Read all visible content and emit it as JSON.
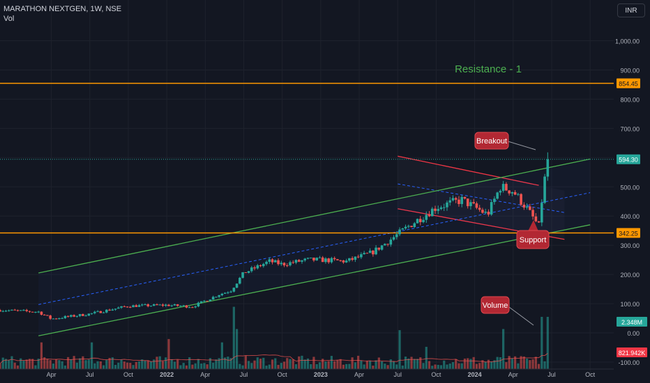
{
  "header": {
    "symbol": "MARATHON NEXTGEN, 1W, NSE",
    "volume_label": "Vol",
    "currency": "INR"
  },
  "colors": {
    "background": "#131722",
    "bull": "#26a69a",
    "bear": "#ef5350",
    "channel_green": "#4caf50",
    "channel_red": "#f23645",
    "level_orange": "#ff9800",
    "median_blue": "#2962ff",
    "callout": "#b22833"
  },
  "annotations": {
    "resistance": "Resistance - 1",
    "breakout": "Breakout",
    "support": "Support",
    "volume": "Volume"
  },
  "chart_data": {
    "type": "candlestick",
    "symbol": "MARATHON NEXTGEN",
    "interval": "1W",
    "exchange": "NSE",
    "y_axis": {
      "ticks": [
        1000,
        900,
        800,
        700,
        600,
        500,
        400,
        300,
        200,
        100,
        0,
        -100
      ],
      "tick_labels": [
        "1,000.00",
        "900.00",
        "800.00",
        "700.00",
        "600.00",
        "500.00",
        "400.00",
        "300.00",
        "200.00",
        "100.00",
        "0.00",
        "-100.00"
      ],
      "ylim": [
        -143,
        1068
      ]
    },
    "x_axis": {
      "ticks": [
        "2021-04",
        "2021-07",
        "2021-10",
        "2022-01",
        "2022-04",
        "2022-07",
        "2022-10",
        "2023-01",
        "2023-04",
        "2023-07",
        "2023-10",
        "2024-01",
        "2024-04",
        "2024-07",
        "2024-10"
      ],
      "tick_labels": [
        "Apr",
        "Jul",
        "Oct",
        "2022",
        "Apr",
        "Jul",
        "Oct",
        "2023",
        "Apr",
        "Jul",
        "Oct",
        "2024",
        "Apr",
        "Jul",
        "Oct"
      ]
    },
    "price_labels": [
      {
        "label": "854.45",
        "value": 854.45
      },
      {
        "label": "594.30",
        "value": 594.3
      },
      {
        "label": "342.25",
        "value": 342.25
      }
    ],
    "volume_labels": [
      {
        "label": "2.348M",
        "value": 2.348
      },
      {
        "label": "821.942K",
        "value": 0.822
      }
    ],
    "horizontal_levels": [
      {
        "name": "Resistance - 1",
        "value": 854.45
      },
      {
        "name": "Support level",
        "value": 342.25
      }
    ],
    "ascending_channel": {
      "upper": [
        [
          "2021-03",
          205
        ],
        [
          "2024-10",
          595
        ]
      ],
      "middle": [
        [
          "2021-03",
          97
        ],
        [
          "2024-10",
          480
        ]
      ],
      "lower": [
        [
          "2021-03",
          -10
        ],
        [
          "2024-10",
          370
        ]
      ]
    },
    "descending_channel": {
      "upper": [
        [
          "2023-07",
          605
        ],
        [
          "2024-06",
          505
        ]
      ],
      "middle": [
        [
          "2023-07",
          510
        ],
        [
          "2024-08",
          412
        ]
      ],
      "lower": [
        [
          "2023-07",
          425
        ],
        [
          "2024-08",
          320
        ]
      ]
    },
    "price_anchors": [
      {
        "date": "2020-12",
        "value": 78
      },
      {
        "date": "2021-03",
        "value": 72
      },
      {
        "date": "2021-04",
        "value": 48
      },
      {
        "date": "2021-07",
        "value": 65
      },
      {
        "date": "2021-10",
        "value": 92
      },
      {
        "date": "2022-01",
        "value": 95
      },
      {
        "date": "2022-03",
        "value": 90
      },
      {
        "date": "2022-05",
        "value": 130
      },
      {
        "date": "2022-06",
        "value": 145
      },
      {
        "date": "2022-07",
        "value": 205
      },
      {
        "date": "2022-09",
        "value": 245
      },
      {
        "date": "2022-10",
        "value": 235
      },
      {
        "date": "2022-12",
        "value": 250
      },
      {
        "date": "2023-01",
        "value": 250
      },
      {
        "date": "2023-03",
        "value": 245
      },
      {
        "date": "2023-05",
        "value": 275
      },
      {
        "date": "2023-06",
        "value": 305
      },
      {
        "date": "2023-08",
        "value": 370
      },
      {
        "date": "2023-10",
        "value": 430
      },
      {
        "date": "2023-12",
        "value": 455
      },
      {
        "date": "2024-02",
        "value": 405
      },
      {
        "date": "2024-03",
        "value": 500
      },
      {
        "date": "2024-04",
        "value": 485
      },
      {
        "date": "2024-05",
        "value": 430
      },
      {
        "date": "2024-06",
        "value": 365
      },
      {
        "date": "2024-06",
        "value": 500
      },
      {
        "date": "2024-06",
        "value": 594.3
      }
    ],
    "volume_spikes": [
      {
        "date": "2021-03",
        "value": 1.2
      },
      {
        "date": "2021-07",
        "value": 1.2
      },
      {
        "date": "2022-01",
        "value": 1.35
      },
      {
        "date": "2022-05",
        "value": 1.2
      },
      {
        "date": "2022-06",
        "value": 2.8
      },
      {
        "date": "2022-06",
        "value": 1.8
      },
      {
        "date": "2023-07",
        "value": 1.75
      },
      {
        "date": "2023-09",
        "value": 1.0
      },
      {
        "date": "2024-03",
        "value": 1.8
      },
      {
        "date": "2024-06",
        "value": 2.348
      }
    ]
  }
}
